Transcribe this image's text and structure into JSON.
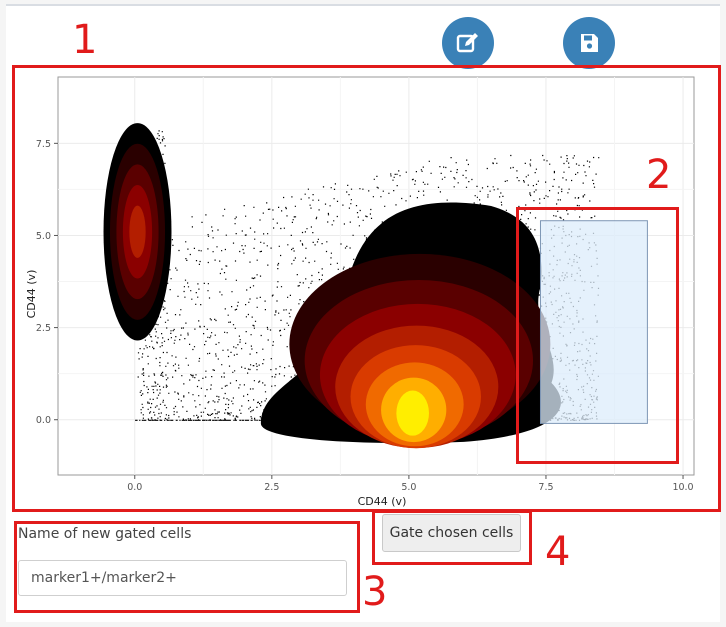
{
  "toolbar": {
    "edit_icon": "edit-icon",
    "save_icon": "floppy-disk-icon",
    "accent_color": "#3a81b7"
  },
  "annotations": {
    "label_1": "1",
    "label_2": "2",
    "label_3": "3",
    "label_4": "4",
    "color": "#e11b1b"
  },
  "chart_data": {
    "type": "scatter",
    "title": "",
    "xlabel": "CD44 (v)",
    "ylabel": "CD44 (v)",
    "xlim": [
      -1.4,
      10.2
    ],
    "ylim": [
      -1.5,
      9.3
    ],
    "xticks": [
      "0.0",
      "2.5",
      "5.0",
      "7.5",
      "10.0"
    ],
    "xtick_values": [
      0,
      2.5,
      5,
      7.5,
      10
    ],
    "yticks": [
      "0.0",
      "2.5",
      "5.0",
      "7.5"
    ],
    "ytick_values": [
      0,
      2.5,
      5,
      7.5
    ],
    "grid": true,
    "gate_rect": {
      "x": [
        7.4,
        9.35
      ],
      "y": [
        -0.1,
        5.4
      ],
      "fill": "#dcecfb"
    },
    "density_colors": [
      "#000000",
      "#2a0000",
      "#5a0000",
      "#8b0000",
      "#b31e00",
      "#d93b00",
      "#f06a00",
      "#ffae00",
      "#ffee00"
    ],
    "clusters": [
      {
        "cx": 0.05,
        "cy": 5.1,
        "rx": 0.62,
        "ry": 2.95
      },
      {
        "cx": 5.2,
        "cy": 0.15,
        "rx": 2.8,
        "ry": 0.6
      }
    ]
  },
  "form": {
    "name_label": "Name of new gated cells",
    "name_value": "marker1+/marker2+",
    "gate_button_label": "Gate chosen cells"
  }
}
